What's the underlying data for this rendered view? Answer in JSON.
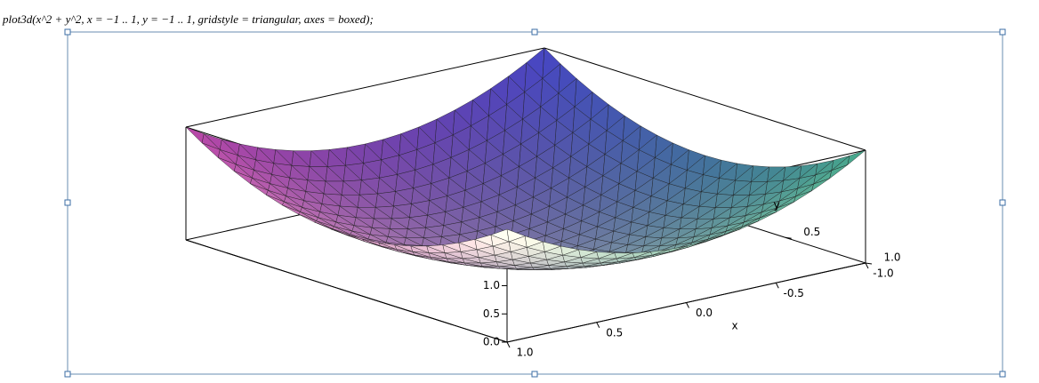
{
  "command": "plot3d(x^2 + y^2, x = −1 .. 1, y = −1 .. 1, gridstyle = triangular, axes = boxed);",
  "plot": {
    "x_label": "x",
    "y_label": "y",
    "x_ticks": [
      "1.0",
      "0.5",
      "0.0",
      "-0.5",
      "-1.0"
    ],
    "y_ticks": [
      "1.0",
      "0.5"
    ],
    "z_ticks": [
      "0.0",
      "0.5",
      "1.0"
    ]
  }
}
